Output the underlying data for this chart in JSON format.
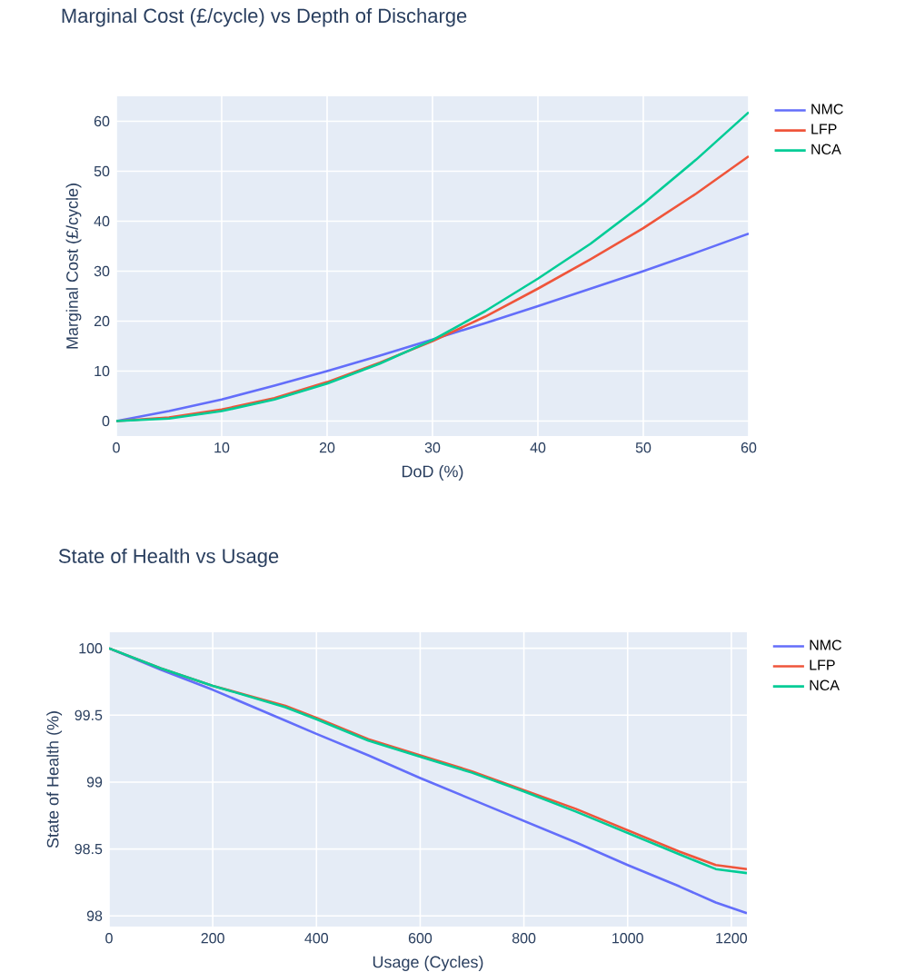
{
  "chart_data": [
    {
      "type": "line",
      "title": "Marginal Cost (£/cycle) vs Depth of Discharge",
      "xlabel": "DoD (%)",
      "ylabel": "Marginal Cost (£/cycle)",
      "xlim": [
        0,
        60
      ],
      "ylim": [
        -3,
        65
      ],
      "xticks": [
        0,
        10,
        20,
        30,
        40,
        50,
        60
      ],
      "yticks": [
        0,
        10,
        20,
        30,
        40,
        50,
        60
      ],
      "grid": true,
      "legend": "top right",
      "x": [
        0,
        5,
        10,
        15,
        20,
        25,
        30,
        35,
        40,
        45,
        50,
        55,
        60
      ],
      "series": [
        {
          "name": "NMC",
          "color": "#636efa",
          "values": [
            0,
            2,
            4.3,
            7.1,
            10,
            13.1,
            16.3,
            19.6,
            23,
            26.5,
            30,
            33.7,
            37.5
          ]
        },
        {
          "name": "LFP",
          "color": "#ef553b",
          "values": [
            0,
            0.7,
            2.3,
            4.6,
            7.8,
            11.7,
            16,
            20.9,
            26.5,
            32.4,
            38.6,
            45.5,
            53
          ]
        },
        {
          "name": "NCA",
          "color": "#00cc96",
          "values": [
            0,
            0.5,
            2,
            4.3,
            7.5,
            11.5,
            16.2,
            22,
            28.5,
            35.5,
            43.5,
            52.3,
            61.8
          ]
        }
      ]
    },
    {
      "type": "line",
      "title": "State of Health vs Usage",
      "xlabel": "Usage (Cycles)",
      "ylabel": "State of Health (%)",
      "xlim": [
        0,
        1230
      ],
      "ylim": [
        97.92,
        100.12
      ],
      "xticks": [
        0,
        200,
        400,
        600,
        800,
        1000,
        1200
      ],
      "yticks": [
        98,
        98.5,
        99,
        99.5,
        100
      ],
      "grid": true,
      "legend": "top right",
      "x": [
        0,
        100,
        200,
        340,
        400,
        500,
        600,
        700,
        800,
        900,
        1000,
        1100,
        1170,
        1230
      ],
      "series": [
        {
          "name": "NMC",
          "color": "#636efa",
          "values": [
            100,
            99.84,
            99.69,
            99.46,
            99.36,
            99.2,
            99.03,
            98.87,
            98.71,
            98.55,
            98.38,
            98.22,
            98.1,
            98.02
          ]
        },
        {
          "name": "LFP",
          "color": "#ef553b",
          "values": [
            100,
            99.85,
            99.72,
            99.57,
            99.48,
            99.32,
            99.2,
            99.08,
            98.94,
            98.8,
            98.64,
            98.48,
            98.38,
            98.35
          ]
        },
        {
          "name": "NCA",
          "color": "#00cc96",
          "values": [
            100,
            99.85,
            99.72,
            99.56,
            99.47,
            99.31,
            99.19,
            99.07,
            98.93,
            98.78,
            98.62,
            98.46,
            98.35,
            98.32
          ]
        }
      ]
    }
  ]
}
